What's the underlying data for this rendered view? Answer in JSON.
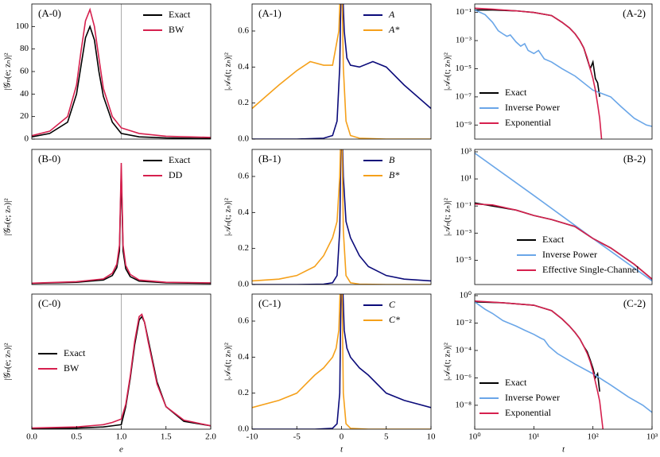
{
  "chart_data": [
    {
      "type": "line",
      "label": "(A-0)",
      "ylabel": "|𝒢ₙ(e; zₙ)|²",
      "xlim": [
        0,
        2
      ],
      "ylim": [
        0,
        120
      ],
      "yticks": [
        0,
        20,
        40,
        60,
        80,
        100
      ],
      "legend": "upper right",
      "vlines": [
        1
      ],
      "vline_color": "#aaaaaa",
      "series": [
        {
          "name": "Exact",
          "color": "#000000",
          "x": [
            0,
            0.2,
            0.4,
            0.5,
            0.55,
            0.6,
            0.65,
            0.7,
            0.75,
            0.8,
            0.9,
            1.0,
            1.2,
            1.5,
            2.0
          ],
          "values": [
            2,
            5,
            15,
            40,
            65,
            90,
            100,
            88,
            60,
            38,
            15,
            5,
            2,
            1,
            0.5
          ]
        },
        {
          "name": "BW",
          "color": "#d6204e",
          "x": [
            0,
            0.2,
            0.4,
            0.5,
            0.55,
            0.6,
            0.65,
            0.7,
            0.75,
            0.8,
            0.9,
            1.0,
            1.2,
            1.5,
            2.0
          ],
          "values": [
            3,
            7,
            20,
            48,
            78,
            105,
            115,
            100,
            72,
            45,
            20,
            10,
            5,
            2.5,
            1.5
          ]
        }
      ]
    },
    {
      "type": "line",
      "label": "(A-1)",
      "ylabel": "|𝒜ₙ(t; zₙ)|²",
      "xlim": [
        -10,
        10
      ],
      "ylim": [
        0,
        0.75
      ],
      "yticks": [
        {
          "value": 0,
          "label": "0.0"
        },
        {
          "value": 0.2,
          "label": "0.2"
        },
        {
          "value": 0.4,
          "label": "0.4"
        },
        {
          "value": 0.6,
          "label": "0.6"
        }
      ],
      "legend": "upper right",
      "series": [
        {
          "name": "A",
          "color": "#0b0b7a",
          "x": [
            -10,
            -5,
            -2,
            -1,
            -0.5,
            -0.2,
            0,
            0.3,
            0.6,
            1,
            2,
            3.5,
            5,
            7,
            10
          ],
          "values": [
            0,
            0,
            0.005,
            0.02,
            0.1,
            0.4,
            1.0,
            0.6,
            0.45,
            0.41,
            0.4,
            0.43,
            0.4,
            0.3,
            0.17
          ]
        },
        {
          "name": "A*",
          "color": "#f5a01a",
          "x": [
            -10,
            -7,
            -5,
            -3.5,
            -2,
            -1,
            -0.3,
            0,
            0.2,
            0.5,
            1,
            2,
            5,
            10
          ],
          "values": [
            0.17,
            0.3,
            0.38,
            0.43,
            0.41,
            0.41,
            0.6,
            1.0,
            0.4,
            0.1,
            0.02,
            0.005,
            0,
            0
          ]
        }
      ]
    },
    {
      "type": "line",
      "label": "(A-2)",
      "ylabel": "|𝒜ₙ(t; zₙ)|²",
      "xscale": "log",
      "yscale": "log",
      "xlim": [
        1,
        1000
      ],
      "ylim": [
        1e-10,
        0.4
      ],
      "yticks": [
        {
          "value": 0.1,
          "label": "10⁻¹"
        },
        {
          "value": 0.001,
          "label": "10⁻³"
        },
        {
          "value": 1e-05,
          "label": "10⁻⁵"
        },
        {
          "value": 1e-07,
          "label": "10⁻⁷"
        },
        {
          "value": 1e-09,
          "label": "10⁻⁹"
        }
      ],
      "legend": "lower left",
      "series": [
        {
          "name": "Exact",
          "color": "#000000",
          "x": [
            1,
            2,
            3,
            5,
            10,
            20,
            30,
            40,
            50,
            60,
            70,
            80,
            90,
            100,
            110,
            120,
            130
          ],
          "values": [
            0.15,
            0.15,
            0.14,
            0.13,
            0.1,
            0.06,
            0.02,
            0.008,
            0.003,
            0.001,
            0.0003,
            5e-05,
            1e-05,
            3e-05,
            2e-06,
            1e-06,
            1e-07
          ]
        },
        {
          "name": "Inverse Power",
          "color": "#6aa6e8",
          "x": [
            1,
            1.5,
            2,
            2.5,
            3,
            3.5,
            4,
            5,
            6,
            7,
            8,
            10,
            12,
            15,
            20,
            30,
            50,
            100,
            200,
            300,
            500,
            800,
            1000
          ],
          "values": [
            0.15,
            0.07,
            0.02,
            0.005,
            0.003,
            0.002,
            0.0025,
            0.0008,
            0.0004,
            0.0006,
            0.0002,
            0.00012,
            0.0002,
            5e-05,
            3e-05,
            1e-05,
            3e-06,
            3e-07,
            1e-07,
            2e-08,
            3e-09,
            1e-09,
            8e-10
          ]
        },
        {
          "name": "Exponential",
          "color": "#d6204e",
          "x": [
            1,
            2,
            3,
            5,
            10,
            20,
            30,
            40,
            50,
            60,
            70,
            80,
            90,
            100,
            110,
            120,
            130,
            140
          ],
          "values": [
            0.2,
            0.17,
            0.15,
            0.13,
            0.1,
            0.06,
            0.02,
            0.008,
            0.003,
            0.001,
            0.0003,
            6e-05,
            1e-05,
            2e-06,
            3e-07,
            3e-08,
            3e-09,
            1e-10
          ]
        }
      ]
    },
    {
      "type": "line",
      "label": "(B-0)",
      "ylabel": "|𝒢ₙ(e; zₙ)|²",
      "xlim": [
        0,
        2
      ],
      "ylim": [
        0,
        120
      ],
      "legend": "upper right",
      "series": [
        {
          "name": "Exact",
          "color": "#000000",
          "x": [
            0,
            0.5,
            0.8,
            0.9,
            0.95,
            0.98,
            1.0,
            1.02,
            1.05,
            1.1,
            1.2,
            1.5,
            2.0
          ],
          "values": [
            1,
            2,
            4,
            8,
            15,
            30,
            100,
            30,
            14,
            7,
            3,
            1.5,
            1
          ]
        },
        {
          "name": "DD",
          "color": "#d6204e",
          "x": [
            0,
            0.5,
            0.8,
            0.9,
            0.95,
            0.98,
            1.0,
            1.02,
            1.05,
            1.1,
            1.2,
            1.5,
            2.0
          ],
          "values": [
            1.2,
            2.5,
            5,
            10,
            18,
            35,
            108,
            35,
            17,
            9,
            4,
            2,
            1.5
          ]
        }
      ]
    },
    {
      "type": "line",
      "label": "(B-1)",
      "ylabel": "|𝒜ₙ(t; zₙ)|²",
      "xlim": [
        -10,
        10
      ],
      "ylim": [
        0,
        0.75
      ],
      "yticks": [
        {
          "value": 0,
          "label": "0.0"
        },
        {
          "value": 0.2,
          "label": "0.2"
        },
        {
          "value": 0.4,
          "label": "0.4"
        },
        {
          "value": 0.6,
          "label": "0.6"
        }
      ],
      "legend": "upper right",
      "series": [
        {
          "name": "B",
          "color": "#0b0b7a",
          "x": [
            -10,
            -5,
            -2,
            -1,
            -0.5,
            -0.2,
            0,
            0.2,
            0.5,
            1,
            2,
            3,
            5,
            7,
            10
          ],
          "values": [
            0,
            0,
            0.002,
            0.01,
            0.05,
            0.3,
            1.0,
            0.6,
            0.35,
            0.26,
            0.16,
            0.1,
            0.05,
            0.03,
            0.02
          ]
        },
        {
          "name": "B*",
          "color": "#f5a01a",
          "x": [
            -10,
            -7,
            -5,
            -3,
            -2,
            -1,
            -0.5,
            -0.2,
            0,
            0.2,
            0.5,
            1,
            2,
            5,
            10
          ],
          "values": [
            0.02,
            0.03,
            0.05,
            0.1,
            0.16,
            0.26,
            0.35,
            0.6,
            1.0,
            0.3,
            0.05,
            0.01,
            0.002,
            0,
            0
          ]
        }
      ]
    },
    {
      "type": "line",
      "label": "(B-2)",
      "ylabel": "|𝒜ₙ(t; zₙ)|²",
      "xscale": "log",
      "yscale": "log",
      "xlim": [
        1,
        1000
      ],
      "ylim": [
        1.6e-07,
        1500
      ],
      "yticks": [
        {
          "value": 1000,
          "label": "10³"
        },
        {
          "value": 10,
          "label": "10¹"
        },
        {
          "value": 0.1,
          "label": "10⁻¹"
        },
        {
          "value": 0.001,
          "label": "10⁻³"
        },
        {
          "value": 1e-05,
          "label": "10⁻⁵"
        }
      ],
      "legend": "lower right",
      "series": [
        {
          "name": "Exact",
          "color": "#000000",
          "x": [
            1,
            2,
            5,
            10,
            20,
            50,
            100,
            200,
            500,
            1000
          ],
          "values": [
            0.17,
            0.1,
            0.05,
            0.02,
            0.01,
            0.003,
            0.0004,
            8e-05,
            5e-06,
            4e-07
          ]
        },
        {
          "name": "Inverse Power",
          "color": "#6aa6e8",
          "x": [
            1,
            10,
            100,
            1000
          ],
          "values": [
            800,
            0.6,
            0.0004,
            3e-07
          ]
        },
        {
          "name": "Effective Single-Channel",
          "color": "#d6204e",
          "x": [
            1,
            2,
            5,
            10,
            20,
            50,
            100,
            200,
            500,
            1000
          ],
          "values": [
            0.14,
            0.12,
            0.05,
            0.02,
            0.01,
            0.003,
            0.0004,
            8e-05,
            5e-06,
            4e-07
          ]
        }
      ]
    },
    {
      "type": "line",
      "label": "(C-0)",
      "ylabel": "|𝒢ₙ(e; zₙ)|²",
      "xlabel": "e",
      "xlim": [
        0,
        2
      ],
      "ylim": [
        0,
        120
      ],
      "xticks": [
        {
          "value": 0,
          "label": "0.0"
        },
        {
          "value": 0.5,
          "label": "0.5"
        },
        {
          "value": 1,
          "label": "1.0"
        },
        {
          "value": 1.5,
          "label": "1.5"
        },
        {
          "value": 2,
          "label": "2.0"
        }
      ],
      "legend": "center left",
      "vlines": [
        1
      ],
      "vline_color": "#aaaaaa",
      "series": [
        {
          "name": "Exact",
          "color": "#000000",
          "x": [
            0,
            0.5,
            0.8,
            0.9,
            1.0,
            1.05,
            1.1,
            1.15,
            1.2,
            1.23,
            1.26,
            1.3,
            1.4,
            1.5,
            1.7,
            2.0
          ],
          "values": [
            0.5,
            1,
            2,
            3,
            4,
            20,
            45,
            75,
            97,
            100,
            95,
            80,
            42,
            20,
            7,
            3
          ]
        },
        {
          "name": "BW",
          "color": "#d6204e",
          "x": [
            0,
            0.5,
            0.8,
            0.9,
            1.0,
            1.05,
            1.1,
            1.15,
            1.2,
            1.23,
            1.26,
            1.3,
            1.4,
            1.5,
            1.7,
            2.0
          ],
          "values": [
            1,
            2,
            4,
            6,
            9,
            22,
            47,
            78,
            100,
            102,
            95,
            78,
            40,
            20,
            8,
            3
          ]
        }
      ]
    },
    {
      "type": "line",
      "label": "(C-1)",
      "ylabel": "|𝒜ₙ(t; zₙ)|²",
      "xlabel": "t",
      "xlim": [
        -10,
        10
      ],
      "ylim": [
        0,
        0.75
      ],
      "xticks": [
        -10,
        -5,
        0,
        5,
        10
      ],
      "yticks": [
        {
          "value": 0,
          "label": "0.0"
        },
        {
          "value": 0.2,
          "label": "0.2"
        },
        {
          "value": 0.4,
          "label": "0.4"
        },
        {
          "value": 0.6,
          "label": "0.6"
        }
      ],
      "legend": "upper right",
      "series": [
        {
          "name": "C",
          "color": "#0b0b7a",
          "x": [
            -10,
            -3,
            -1,
            -0.5,
            -0.2,
            0,
            0.3,
            0.6,
            1,
            2,
            3,
            5,
            7,
            10
          ],
          "values": [
            0,
            0,
            0.005,
            0.03,
            0.2,
            1.0,
            0.55,
            0.45,
            0.4,
            0.34,
            0.3,
            0.2,
            0.16,
            0.12
          ]
        },
        {
          "name": "C*",
          "color": "#f5a01a",
          "x": [
            -10,
            -7,
            -5,
            -3,
            -2,
            -1,
            -0.6,
            -0.3,
            0,
            0.2,
            0.5,
            1,
            3,
            10
          ],
          "values": [
            0.12,
            0.16,
            0.2,
            0.3,
            0.34,
            0.4,
            0.45,
            0.55,
            1.0,
            0.2,
            0.03,
            0.005,
            0,
            0
          ]
        }
      ]
    },
    {
      "type": "line",
      "label": "(C-2)",
      "ylabel": "|𝒜ₙ(t; zₙ)|²",
      "xlabel": "t",
      "xscale": "log",
      "yscale": "log",
      "xlim": [
        1,
        1000
      ],
      "ylim": [
        1.8e-10,
        1.3
      ],
      "xticks": [
        {
          "value": 1,
          "label": "10⁰"
        },
        {
          "value": 10,
          "label": "10¹"
        },
        {
          "value": 100,
          "label": "10²"
        },
        {
          "value": 1000,
          "label": "10³"
        }
      ],
      "yticks": [
        {
          "value": 1,
          "label": "10⁰"
        },
        {
          "value": 0.01,
          "label": "10⁻²"
        },
        {
          "value": 0.0001,
          "label": "10⁻⁴"
        },
        {
          "value": 1e-06,
          "label": "10⁻⁶"
        },
        {
          "value": 1e-08,
          "label": "10⁻⁸"
        }
      ],
      "legend": "lower left",
      "series": [
        {
          "name": "Exact",
          "color": "#000000",
          "x": [
            1,
            3,
            10,
            20,
            30,
            40,
            50,
            60,
            70,
            80,
            90,
            100,
            110,
            120,
            130
          ],
          "values": [
            0.35,
            0.3,
            0.2,
            0.08,
            0.02,
            0.006,
            0.002,
            0.0007,
            0.0002,
            8e-05,
            2e-05,
            5e-06,
            1e-06,
            2e-06,
            1e-07
          ]
        },
        {
          "name": "Inverse Power",
          "color": "#6aa6e8",
          "x": [
            1,
            1.5,
            2,
            3,
            5,
            7,
            10,
            13,
            15,
            18,
            25,
            50,
            100,
            200,
            400,
            700,
            1000
          ],
          "values": [
            0.35,
            0.1,
            0.05,
            0.015,
            0.006,
            0.003,
            0.0015,
            0.0008,
            0.0006,
            0.0002,
            6e-05,
            1e-05,
            2e-06,
            3e-07,
            4e-08,
            1e-08,
            3e-09
          ]
        },
        {
          "name": "Exponential",
          "color": "#d6204e",
          "x": [
            1,
            3,
            10,
            20,
            30,
            40,
            50,
            60,
            70,
            80,
            90,
            100,
            110,
            120,
            130,
            150
          ],
          "values": [
            0.4,
            0.3,
            0.2,
            0.08,
            0.02,
            0.006,
            0.002,
            0.0007,
            0.0002,
            6e-05,
            1.5e-05,
            3e-06,
            5e-07,
            1e-07,
            2e-08,
            1e-10
          ]
        }
      ]
    }
  ]
}
